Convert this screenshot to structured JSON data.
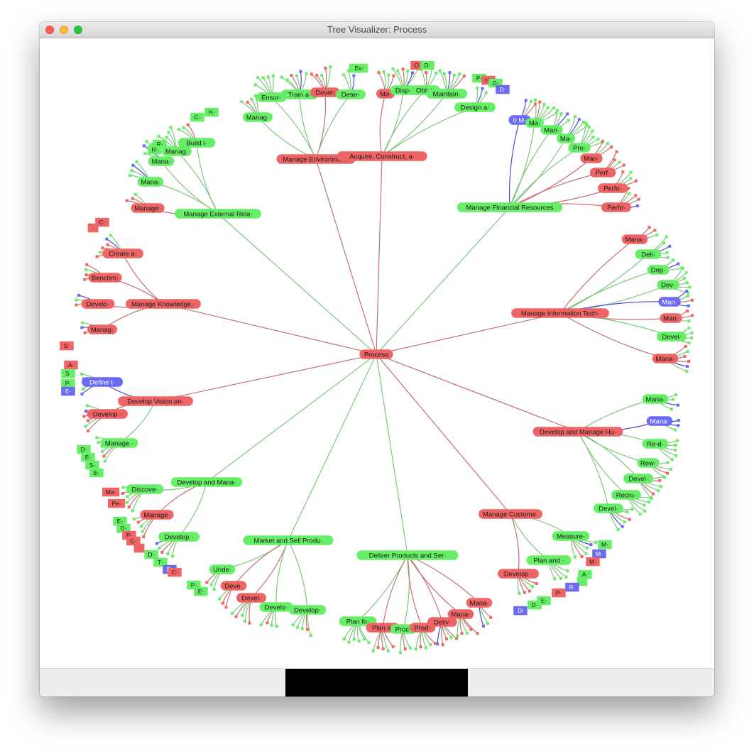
{
  "window": {
    "title": "Tree Visualizer: Process"
  },
  "colors": {
    "red_node": "#ef6464",
    "green_node": "#66ef66",
    "blue_node": "#6a6af2",
    "red_edge": "#c77070",
    "green_edge": "#7cc77c",
    "blue_edge": "#4a4ad0"
  },
  "tree": {
    "root": {
      "label": "Process",
      "color": "red"
    },
    "branches": [
      {
        "label": "Manage Environment·",
        "color": "red",
        "children": [
          {
            "label": "Manag·",
            "color": "green"
          },
          {
            "label": "Ensur·",
            "color": "green"
          },
          {
            "label": "Train a·",
            "color": "green"
          },
          {
            "label": "Devel·",
            "color": "red"
          },
          {
            "label": "Deter·",
            "color": "green"
          }
        ]
      },
      {
        "label": "Acquire, Construct, a·",
        "color": "red",
        "children": [
          {
            "label": "Ma·",
            "color": "red"
          },
          {
            "label": "Disp·",
            "color": "green"
          },
          {
            "label": "Obtai·",
            "color": "green"
          },
          {
            "label": "Maintain·",
            "color": "green"
          },
          {
            "label": "Design a·",
            "color": "green"
          }
        ]
      },
      {
        "label": "Manage Financial Resources",
        "color": "green",
        "children": [
          {
            "label": "0 M·",
            "color": "blue"
          },
          {
            "label": "Ma·",
            "color": "green"
          },
          {
            "label": "Man·",
            "color": "green"
          },
          {
            "label": "Ma·",
            "color": "green"
          },
          {
            "label": "Pro·",
            "color": "green"
          },
          {
            "label": "Man·",
            "color": "red"
          },
          {
            "label": "Perf·",
            "color": "red"
          },
          {
            "label": "Perfo·",
            "color": "red"
          },
          {
            "label": "Perfo·",
            "color": "red"
          }
        ]
      },
      {
        "label": "Manage Information Tech·",
        "color": "red",
        "children": [
          {
            "label": "Mana·",
            "color": "red"
          },
          {
            "label": "Deli·",
            "color": "green"
          },
          {
            "label": "Dep·",
            "color": "green"
          },
          {
            "label": "Dev·",
            "color": "green"
          },
          {
            "label": "Man·",
            "color": "blue"
          },
          {
            "label": "Man·",
            "color": "red"
          },
          {
            "label": "Devel·",
            "color": "green"
          },
          {
            "label": "Mana·",
            "color": "red"
          }
        ]
      },
      {
        "label": "Develop and Manage Hu·",
        "color": "red",
        "children": [
          {
            "label": "Mana·",
            "color": "green"
          },
          {
            "label": "Mana·",
            "color": "blue"
          },
          {
            "label": "Re-d·",
            "color": "green"
          },
          {
            "label": "Rew·",
            "color": "green"
          },
          {
            "label": "Devel·",
            "color": "green"
          },
          {
            "label": "Recru·",
            "color": "green"
          },
          {
            "label": "Devel·",
            "color": "green"
          }
        ]
      },
      {
        "label": "Manage Custome·",
        "color": "red",
        "children": [
          {
            "label": "Measure·",
            "color": "green"
          },
          {
            "label": "Plan and ·",
            "color": "green"
          },
          {
            "label": "Develop ·",
            "color": "red"
          }
        ]
      },
      {
        "label": "Deliver Products and Ser·",
        "color": "green",
        "children": [
          {
            "label": "Plan fo·",
            "color": "green"
          },
          {
            "label": "Plan a·",
            "color": "red"
          },
          {
            "label": "Proc·",
            "color": "green"
          },
          {
            "label": "Prod·",
            "color": "red"
          },
          {
            "label": "Deliv·",
            "color": "red"
          },
          {
            "label": "Mana·",
            "color": "red"
          },
          {
            "label": "Mana·",
            "color": "red"
          }
        ]
      },
      {
        "label": "Market and Sell Produ·",
        "color": "green",
        "children": [
          {
            "label": "Unde·",
            "color": "green"
          },
          {
            "label": "Deve·",
            "color": "red"
          },
          {
            "label": "Devel·",
            "color": "red"
          },
          {
            "label": "Develo·",
            "color": "green"
          },
          {
            "label": "Develop·",
            "color": "green"
          }
        ]
      },
      {
        "label": "Develop and Mana·",
        "color": "green",
        "children": [
          {
            "label": "Discove·",
            "color": "green"
          },
          {
            "label": "Manage·",
            "color": "red"
          },
          {
            "label": "Develop ·",
            "color": "green"
          }
        ]
      },
      {
        "label": "Develop Vision an·",
        "color": "red",
        "children": [
          {
            "label": "Define t·",
            "color": "blue"
          },
          {
            "label": "Develop ·",
            "color": "red"
          },
          {
            "label": "Manage ·",
            "color": "green"
          }
        ]
      },
      {
        "label": "Manage Knowledge,·",
        "color": "red",
        "children": [
          {
            "label": "Create a·",
            "color": "red"
          },
          {
            "label": "Benchm·",
            "color": "red"
          },
          {
            "label": "Develo·",
            "color": "red"
          },
          {
            "label": "Manag·",
            "color": "red"
          }
        ]
      },
      {
        "label": "Manage External Rela·",
        "color": "green",
        "children": [
          {
            "label": "Manage·",
            "color": "red"
          },
          {
            "label": "Mana·",
            "color": "green"
          },
          {
            "label": "Mana·",
            "color": "green"
          },
          {
            "label": "Manag·",
            "color": "green"
          },
          {
            "label": "Build i·",
            "color": "green"
          }
        ]
      }
    ],
    "leaf_labels": [
      {
        "label": "C·",
        "color": "green"
      },
      {
        "label": "Ev·",
        "color": "green"
      },
      {
        "label": "O·",
        "color": "red"
      },
      {
        "label": "D·",
        "color": "green"
      },
      {
        "label": "P·",
        "color": "green"
      },
      {
        "label": "H·",
        "color": "red"
      },
      {
        "label": "D·",
        "color": "green"
      },
      {
        "label": "D·",
        "color": "blue"
      },
      {
        "label": "H·",
        "color": "green"
      },
      {
        "label": "C·",
        "color": "green"
      },
      {
        "label": "R·",
        "color": "green"
      },
      {
        "label": "R·",
        "color": "green"
      },
      {
        "label": "C·",
        "color": "red"
      },
      {
        "label": "·",
        "color": "red"
      },
      {
        "label": "S·",
        "color": "red"
      },
      {
        "label": "A·",
        "color": "red"
      },
      {
        "label": "S·",
        "color": "green"
      },
      {
        "label": "P·",
        "color": "green"
      },
      {
        "label": "E·",
        "color": "blue"
      },
      {
        "label": "D·",
        "color": "green"
      },
      {
        "label": "E·",
        "color": "green"
      },
      {
        "label": "S·",
        "color": "green"
      },
      {
        "label": "E·",
        "color": "green"
      },
      {
        "label": "Ma·",
        "color": "red"
      },
      {
        "label": "Pe·",
        "color": "red"
      },
      {
        "label": "E·",
        "color": "green"
      },
      {
        "label": "D·",
        "color": "green"
      },
      {
        "label": "P·",
        "color": "red"
      },
      {
        "label": "C·",
        "color": "red"
      },
      {
        "label": "·",
        "color": "red"
      },
      {
        "label": "D·",
        "color": "green"
      },
      {
        "label": "T·",
        "color": "green"
      },
      {
        "label": "Pr",
        "color": "blue"
      },
      {
        "label": "C·",
        "color": "red"
      },
      {
        "label": "P·",
        "color": "green"
      },
      {
        "label": "E·",
        "color": "green"
      },
      {
        "label": "M·",
        "color": "green"
      },
      {
        "label": "M·",
        "color": "blue"
      },
      {
        "label": "M·",
        "color": "red"
      },
      {
        "label": "A·",
        "color": "green"
      },
      {
        "label": "·",
        "color": "green"
      },
      {
        "label": "R·",
        "color": "blue"
      },
      {
        "label": "P·",
        "color": "red"
      },
      {
        "label": "E·",
        "color": "green"
      },
      {
        "label": "D·",
        "color": "green"
      },
      {
        "label": "Di",
        "color": "blue"
      }
    ]
  }
}
